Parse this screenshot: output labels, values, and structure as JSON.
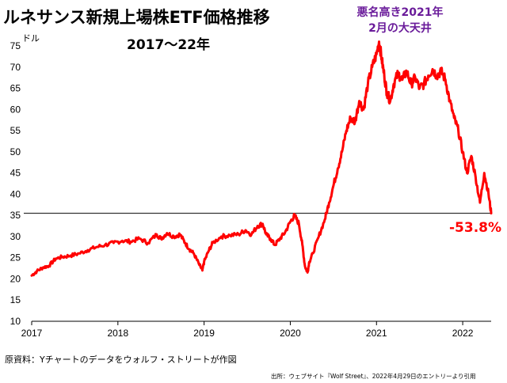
{
  "header": {
    "title": "ルネサンス新規上場株ETF価格推移",
    "subtitle": "2017～22年",
    "annotation_lines": [
      "悪名高き2021年",
      "2月の大天井"
    ]
  },
  "footer": {
    "source": "原資料：Yチャートのデータをウォルフ・ストリートが作図",
    "citation": "出所：ウェブサイト『Wolf Street』、2022年4月29日のエントリーより引用"
  },
  "chart_data": {
    "type": "line",
    "unit_label": "ドル",
    "ylim": [
      10,
      75
    ],
    "yticks": [
      10,
      15,
      20,
      25,
      30,
      35,
      40,
      45,
      50,
      55,
      60,
      65,
      70,
      75
    ],
    "xlim": [
      2017.0,
      2022.33
    ],
    "xticks": [
      "2017",
      "2018",
      "2019",
      "2020",
      "2021",
      "2022"
    ],
    "grid": false,
    "reference_line": 35.5,
    "change_label": "-53.8%",
    "colors": {
      "series": "#ff0000",
      "reference": "#333333",
      "change_label": "#ff0000",
      "annotation": "#6a1b9a"
    },
    "series": [
      {
        "x": [
          2017.0,
          2017.06,
          2017.13,
          2017.2,
          2017.28,
          2017.36,
          2017.45,
          2017.55,
          2017.65,
          2017.75,
          2017.85,
          2017.95,
          2018.05,
          2018.15,
          2018.25,
          2018.35,
          2018.45,
          2018.5,
          2018.57,
          2018.65,
          2018.72,
          2018.78,
          2018.83,
          2018.88,
          2018.94,
          2018.98,
          2019.0,
          2019.05,
          2019.1,
          2019.2,
          2019.3,
          2019.4,
          2019.48,
          2019.55,
          2019.62,
          2019.68,
          2019.72,
          2019.77,
          2019.82,
          2019.88,
          2019.94,
          2020.0,
          2020.05,
          2020.1,
          2020.14,
          2020.17,
          2020.2,
          2020.22,
          2020.26,
          2020.33,
          2020.4,
          2020.45,
          2020.5,
          2020.55,
          2020.6,
          2020.65,
          2020.7,
          2020.75,
          2020.8,
          2020.85,
          2020.9,
          2020.95,
          2021.0,
          2021.03,
          2021.06,
          2021.09,
          2021.12,
          2021.16,
          2021.2,
          2021.25,
          2021.3,
          2021.35,
          2021.4,
          2021.45,
          2021.5,
          2021.55,
          2021.6,
          2021.65,
          2021.7,
          2021.75,
          2021.8,
          2021.85,
          2021.9,
          2021.95,
          2022.0,
          2022.05,
          2022.1,
          2022.15,
          2022.2,
          2022.25,
          2022.3,
          2022.33
        ],
        "y": [
          20.8,
          21.8,
          22.7,
          23.1,
          24.8,
          25.2,
          25.5,
          26.0,
          26.8,
          27.5,
          28.0,
          28.5,
          29.0,
          28.8,
          29.5,
          28.5,
          30.5,
          29.5,
          30.8,
          30.0,
          30.5,
          28.5,
          27.0,
          26.0,
          23.5,
          22.0,
          24.0,
          26.5,
          28.5,
          30.0,
          30.3,
          30.5,
          31.5,
          30.5,
          32.5,
          33.0,
          30.5,
          29.5,
          28.0,
          29.5,
          31.0,
          33.5,
          35.0,
          33.0,
          28.0,
          23.0,
          21.5,
          24.0,
          26.0,
          30.0,
          34.0,
          38.0,
          42.0,
          46.0,
          50.0,
          55.0,
          58.0,
          57.0,
          62.0,
          60.0,
          66.0,
          70.0,
          73.0,
          76.0,
          72.0,
          68.0,
          64.0,
          62.0,
          66.0,
          68.5,
          67.0,
          69.0,
          66.0,
          67.5,
          65.0,
          66.0,
          68.0,
          69.5,
          68.0,
          69.0,
          67.0,
          62.0,
          58.0,
          55.0,
          50.0,
          45.0,
          49.0,
          44.0,
          38.0,
          45.0,
          40.0,
          35.5
        ]
      }
    ]
  }
}
